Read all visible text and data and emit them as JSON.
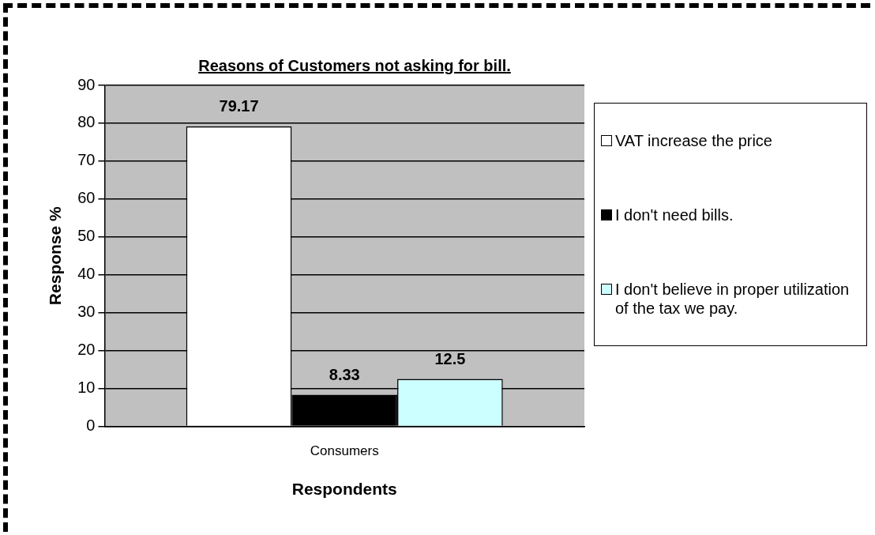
{
  "chart_data": {
    "type": "bar",
    "title": "Reasons of Customers not asking for bill.",
    "xlabel": "Respondents",
    "ylabel": "Response %",
    "categories": [
      "Consumers"
    ],
    "series": [
      {
        "name": "VAT increase the price",
        "color": "#ffffff",
        "values": [
          79.17
        ]
      },
      {
        "name": "I don't need bills.",
        "color": "#000000",
        "values": [
          8.33
        ]
      },
      {
        "name": "I don't believe in proper utilization of the tax we pay.",
        "color": "#ccffff",
        "values": [
          12.5
        ]
      }
    ],
    "ylim": [
      0,
      90
    ],
    "yticks": [
      0,
      10,
      20,
      30,
      40,
      50,
      60,
      70,
      80,
      90
    ],
    "grid": "y",
    "legend": "right",
    "data_labels": true
  }
}
